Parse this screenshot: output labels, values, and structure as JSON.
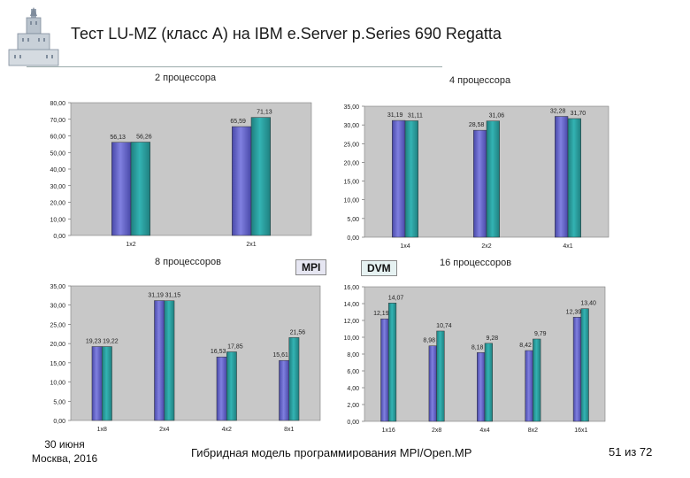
{
  "slide": {
    "title": "Тест LU-MZ (класс A) на IBM e.Server p.Series 690 Regatta",
    "footer_date": "30 июня",
    "footer_place": "Москва, 2016",
    "footer_title": "Гибридная модель программирования MPI/Open.MP",
    "page_number": "51 из 72"
  },
  "legend": {
    "mpi": "MPI",
    "dvm": "DVM",
    "mpi_color": "#8080e0",
    "dvm_color": "#33b3b3"
  },
  "chart_labels": {
    "c2": "2 процессора",
    "c4": "4 процессора",
    "c8": "8 процессоров",
    "c16": "16 процессоров"
  },
  "chart_data": [
    {
      "id": "c2",
      "type": "bar",
      "categories": [
        "1x2",
        "2x1"
      ],
      "series": [
        {
          "name": "MPI",
          "values": [
            56.13,
            65.59
          ]
        },
        {
          "name": "DVM",
          "values": [
            56.26,
            71.13
          ]
        }
      ],
      "value_labels": [
        [
          "56,13",
          "65,59"
        ],
        [
          "56,26",
          "71,13"
        ]
      ],
      "ylim": [
        0,
        80
      ],
      "yticks": [
        "0,00",
        "10,00",
        "20,00",
        "30,00",
        "40,00",
        "50,00",
        "60,00",
        "70,00",
        "80,00"
      ]
    },
    {
      "id": "c4",
      "type": "bar",
      "categories": [
        "1x4",
        "2x2",
        "4x1"
      ],
      "series": [
        {
          "name": "MPI",
          "values": [
            31.19,
            28.58,
            32.28
          ]
        },
        {
          "name": "DVM",
          "values": [
            31.11,
            31.06,
            31.7
          ]
        }
      ],
      "value_labels": [
        [
          "31,19",
          "28,58",
          "32,28"
        ],
        [
          "31,11",
          "31,06",
          "31,70"
        ]
      ],
      "ylim": [
        0,
        35
      ],
      "yticks": [
        "0,00",
        "5,00",
        "10,00",
        "15,00",
        "20,00",
        "25,00",
        "30,00",
        "35,00"
      ]
    },
    {
      "id": "c8",
      "type": "bar",
      "categories": [
        "1x8",
        "2x4",
        "4x2",
        "8x1"
      ],
      "series": [
        {
          "name": "MPI",
          "values": [
            19.23,
            31.19,
            16.53,
            15.61
          ]
        },
        {
          "name": "DVM",
          "values": [
            19.22,
            31.15,
            17.85,
            21.56
          ]
        }
      ],
      "value_labels": [
        [
          "19,23",
          "31,19",
          "16,53",
          "15,61"
        ],
        [
          "19,22",
          "31,15",
          "17,85",
          "21,56"
        ]
      ],
      "ylim": [
        0,
        35
      ],
      "yticks": [
        "0,00",
        "5,00",
        "10,00",
        "15,00",
        "20,00",
        "25,00",
        "30,00",
        "35,00"
      ]
    },
    {
      "id": "c16",
      "type": "bar",
      "categories": [
        "1x16",
        "2x8",
        "4x4",
        "8x2",
        "16x1"
      ],
      "series": [
        {
          "name": "MPI",
          "values": [
            12.19,
            8.98,
            8.18,
            8.42,
            12.39
          ]
        },
        {
          "name": "DVM",
          "values": [
            14.07,
            10.74,
            9.28,
            9.79,
            13.4
          ]
        }
      ],
      "value_labels": [
        [
          "12,19",
          "8,98",
          "8,18",
          "8,42",
          "12,39"
        ],
        [
          "14,07",
          "10,74",
          "9,28",
          "9,79",
          "13,40"
        ]
      ],
      "ylim": [
        0,
        16
      ],
      "yticks": [
        "0,00",
        "2,00",
        "4,00",
        "6,00",
        "8,00",
        "10,00",
        "12,00",
        "14,00",
        "16,00"
      ]
    }
  ]
}
